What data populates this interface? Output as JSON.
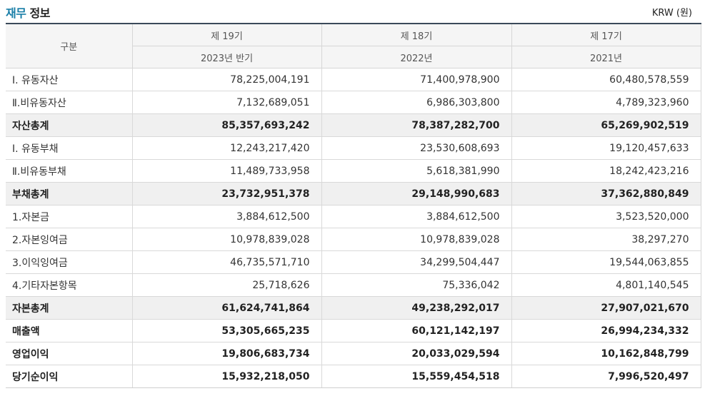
{
  "header": {
    "title_accent": "재무",
    "title_rest": " 정보",
    "unit": "KRW (원)"
  },
  "table": {
    "gubun_label": "구분",
    "periods": [
      {
        "term": "제 19기",
        "year": "2023년 반기"
      },
      {
        "term": "제 18기",
        "year": "2022년"
      },
      {
        "term": "제 17기",
        "year": "2021년"
      }
    ],
    "rows": [
      {
        "label": "Ⅰ. 유동자산",
        "values": [
          "78,225,004,191",
          "71,400,978,900",
          "60,480,578,559"
        ]
      },
      {
        "label": "Ⅱ.비유동자산",
        "values": [
          "7,132,689,051",
          "6,986,303,800",
          "4,789,323,960"
        ]
      },
      {
        "label": "자산총계",
        "values": [
          "85,357,693,242",
          "78,387,282,700",
          "65,269,902,519"
        ]
      },
      {
        "label": "Ⅰ. 유동부채",
        "values": [
          "12,243,217,420",
          "23,530,608,693",
          "19,120,457,633"
        ]
      },
      {
        "label": "Ⅱ.비유동부채",
        "values": [
          "11,489,733,958",
          "5,618,381,990",
          "18,242,423,216"
        ]
      },
      {
        "label": "부채총계",
        "values": [
          "23,732,951,378",
          "29,148,990,683",
          "37,362,880,849"
        ]
      },
      {
        "label": "1.자본금",
        "values": [
          "3,884,612,500",
          "3,884,612,500",
          "3,523,520,000"
        ]
      },
      {
        "label": "2.자본잉여금",
        "values": [
          "10,978,839,028",
          "10,978,839,028",
          "38,297,270"
        ]
      },
      {
        "label": "3.이익잉여금",
        "values": [
          "46,735,571,710",
          "34,299,504,447",
          "19,544,063,855"
        ]
      },
      {
        "label": "4.기타자본항목",
        "values": [
          "25,718,626",
          "75,336,042",
          "4,801,140,545"
        ]
      },
      {
        "label": "자본총계",
        "values": [
          "61,624,741,864",
          "49,238,292,017",
          "27,907,021,670"
        ]
      },
      {
        "label": "매출액",
        "values": [
          "53,305,665,235",
          "60,121,142,197",
          "26,994,234,332"
        ]
      },
      {
        "label": "영업이익",
        "values": [
          "19,806,683,734",
          "20,033,029,594",
          "10,162,848,799"
        ]
      },
      {
        "label": "당기순이익",
        "values": [
          "15,932,218,050",
          "15,559,454,518",
          "7,996,520,497"
        ]
      }
    ]
  }
}
